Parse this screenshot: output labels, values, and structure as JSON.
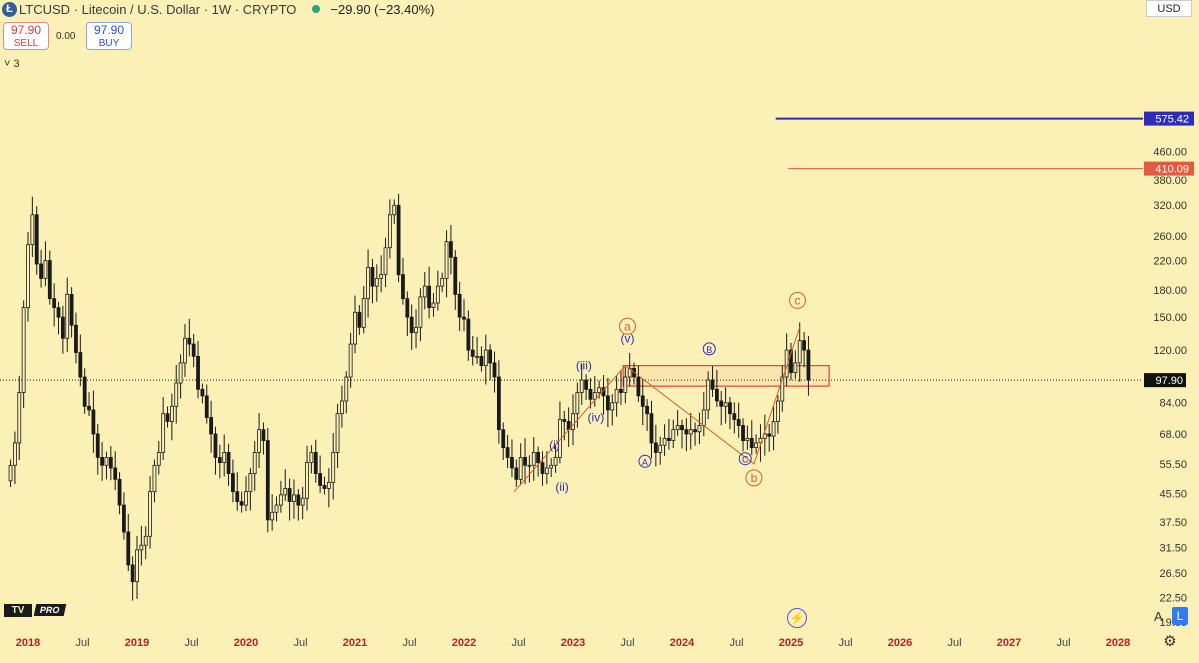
{
  "header": {
    "symbol": "LTCUSD",
    "title": "Litecoin / U.S. Dollar · 1W · CRYPTO",
    "change": "−29.90 (−23.40%)",
    "logo_glyph": "Ł",
    "logo_icon": "litecoin-icon",
    "status_color": "#2aa57a"
  },
  "trade": {
    "sell_price": "97.90",
    "sell_label": "SELL",
    "spread": "0.00",
    "buy_price": "97.90",
    "buy_label": "BUY"
  },
  "indicators": {
    "toggle_icon": "chevron-down-icon",
    "count": "3"
  },
  "currency": "USD",
  "branding": {
    "tv": "TV",
    "pro": "PRO"
  },
  "bottom_controls": {
    "auto_scale": "A",
    "log_scale": "L",
    "bolt_icon": "lightning-icon",
    "settings_icon": "gear-icon"
  },
  "chart_data": {
    "type": "candlestick",
    "symbol": "LTCUSD",
    "interval": "1W",
    "yscale": "log",
    "grid": false,
    "ylim": [
      16,
      620
    ],
    "y_ticks": [
      "460.00",
      "380.00",
      "320.00",
      "260.00",
      "220.00",
      "180.00",
      "150.00",
      "120.00",
      "84.00",
      "68.00",
      "55.50",
      "45.50",
      "37.50",
      "31.50",
      "26.50",
      "22.50",
      "19.00"
    ],
    "x_ticks": [
      {
        "label": "2018",
        "t": 2018.0,
        "bold": true
      },
      {
        "label": "Jul",
        "t": 2018.5
      },
      {
        "label": "2019",
        "t": 2019.0,
        "bold": true
      },
      {
        "label": "Jul",
        "t": 2019.5
      },
      {
        "label": "2020",
        "t": 2020.0,
        "bold": true
      },
      {
        "label": "Jul",
        "t": 2020.5
      },
      {
        "label": "2021",
        "t": 2021.0,
        "bold": true
      },
      {
        "label": "Jul",
        "t": 2021.5
      },
      {
        "label": "2022",
        "t": 2022.0,
        "bold": true
      },
      {
        "label": "Jul",
        "t": 2022.5
      },
      {
        "label": "2023",
        "t": 2023.0,
        "bold": true
      },
      {
        "label": "Jul",
        "t": 2023.5
      },
      {
        "label": "2024",
        "t": 2024.0,
        "bold": true
      },
      {
        "label": "Jul",
        "t": 2024.5
      },
      {
        "label": "2025",
        "t": 2025.0,
        "bold": true
      },
      {
        "label": "Jul",
        "t": 2025.5
      },
      {
        "label": "2026",
        "t": 2026.0,
        "bold": true
      },
      {
        "label": "Jul",
        "t": 2026.5
      },
      {
        "label": "2027",
        "t": 2027.0,
        "bold": true
      },
      {
        "label": "Jul",
        "t": 2027.5
      },
      {
        "label": "2028",
        "t": 2028.0,
        "bold": true
      }
    ],
    "candle_color": "#1a1a1a",
    "price_line": {
      "value": 97.9,
      "label": "97.90"
    },
    "hlines": [
      {
        "value": 575.42,
        "label": "575.42",
        "color": "#2d2db8",
        "from": 2024.86
      },
      {
        "value": 410.09,
        "label": "410.09",
        "color": "#e35a3f",
        "from": 2024.97
      }
    ],
    "accent_wave": "#2d2db8",
    "accent_correction": "#d2602a",
    "closes": [
      [
        2017.84,
        55
      ],
      [
        2017.88,
        64
      ],
      [
        2017.92,
        90
      ],
      [
        2017.96,
        160
      ],
      [
        2018.0,
        245
      ],
      [
        2018.04,
        300
      ],
      [
        2018.08,
        215
      ],
      [
        2018.12,
        195
      ],
      [
        2018.16,
        220
      ],
      [
        2018.2,
        170
      ],
      [
        2018.24,
        160
      ],
      [
        2018.28,
        150
      ],
      [
        2018.32,
        130
      ],
      [
        2018.36,
        175
      ],
      [
        2018.4,
        142
      ],
      [
        2018.44,
        118
      ],
      [
        2018.48,
        100
      ],
      [
        2018.52,
        82
      ],
      [
        2018.56,
        80
      ],
      [
        2018.6,
        68
      ],
      [
        2018.64,
        58
      ],
      [
        2018.68,
        55
      ],
      [
        2018.72,
        58
      ],
      [
        2018.76,
        54
      ],
      [
        2018.8,
        50
      ],
      [
        2018.84,
        42
      ],
      [
        2018.88,
        35
      ],
      [
        2018.92,
        28
      ],
      [
        2018.96,
        25
      ],
      [
        2019.0,
        31
      ],
      [
        2019.04,
        32
      ],
      [
        2019.08,
        34
      ],
      [
        2019.12,
        46
      ],
      [
        2019.16,
        55
      ],
      [
        2019.2,
        60
      ],
      [
        2019.24,
        78
      ],
      [
        2019.28,
        74
      ],
      [
        2019.32,
        82
      ],
      [
        2019.36,
        96
      ],
      [
        2019.4,
        110
      ],
      [
        2019.44,
        130
      ],
      [
        2019.48,
        125
      ],
      [
        2019.52,
        115
      ],
      [
        2019.56,
        92
      ],
      [
        2019.6,
        88
      ],
      [
        2019.64,
        76
      ],
      [
        2019.68,
        68
      ],
      [
        2019.72,
        58
      ],
      [
        2019.76,
        56
      ],
      [
        2019.8,
        60
      ],
      [
        2019.84,
        52
      ],
      [
        2019.88,
        46
      ],
      [
        2019.92,
        43
      ],
      [
        2019.96,
        42
      ],
      [
        2020.0,
        46
      ],
      [
        2020.04,
        52
      ],
      [
        2020.08,
        60
      ],
      [
        2020.12,
        70
      ],
      [
        2020.16,
        65
      ],
      [
        2020.2,
        38
      ],
      [
        2020.24,
        40
      ],
      [
        2020.28,
        42
      ],
      [
        2020.32,
        45
      ],
      [
        2020.36,
        47
      ],
      [
        2020.4,
        43
      ],
      [
        2020.44,
        45
      ],
      [
        2020.48,
        42
      ],
      [
        2020.52,
        44
      ],
      [
        2020.56,
        56
      ],
      [
        2020.6,
        60
      ],
      [
        2020.64,
        52
      ],
      [
        2020.68,
        48
      ],
      [
        2020.72,
        47
      ],
      [
        2020.76,
        49
      ],
      [
        2020.8,
        60
      ],
      [
        2020.84,
        78
      ],
      [
        2020.88,
        85
      ],
      [
        2020.92,
        100
      ],
      [
        2020.96,
        125
      ],
      [
        2021.0,
        155
      ],
      [
        2021.04,
        140
      ],
      [
        2021.08,
        170
      ],
      [
        2021.12,
        210
      ],
      [
        2021.16,
        185
      ],
      [
        2021.2,
        195
      ],
      [
        2021.24,
        200
      ],
      [
        2021.28,
        240
      ],
      [
        2021.32,
        300
      ],
      [
        2021.36,
        320
      ],
      [
        2021.4,
        200
      ],
      [
        2021.44,
        170
      ],
      [
        2021.48,
        150
      ],
      [
        2021.52,
        135
      ],
      [
        2021.56,
        140
      ],
      [
        2021.6,
        172
      ],
      [
        2021.64,
        185
      ],
      [
        2021.68,
        160
      ],
      [
        2021.72,
        165
      ],
      [
        2021.76,
        185
      ],
      [
        2021.8,
        195
      ],
      [
        2021.84,
        250
      ],
      [
        2021.88,
        225
      ],
      [
        2021.92,
        175
      ],
      [
        2021.96,
        150
      ],
      [
        2022.0,
        148
      ],
      [
        2022.04,
        120
      ],
      [
        2022.08,
        115
      ],
      [
        2022.12,
        115
      ],
      [
        2022.16,
        108
      ],
      [
        2022.2,
        120
      ],
      [
        2022.24,
        110
      ],
      [
        2022.28,
        100
      ],
      [
        2022.32,
        70
      ],
      [
        2022.36,
        62
      ],
      [
        2022.4,
        58
      ],
      [
        2022.44,
        54
      ],
      [
        2022.48,
        50
      ],
      [
        2022.52,
        58
      ],
      [
        2022.56,
        55
      ],
      [
        2022.6,
        55
      ],
      [
        2022.64,
        60
      ],
      [
        2022.68,
        56
      ],
      [
        2022.72,
        52
      ],
      [
        2022.76,
        54
      ],
      [
        2022.8,
        55
      ],
      [
        2022.84,
        58
      ],
      [
        2022.88,
        75
      ],
      [
        2022.92,
        74
      ],
      [
        2022.96,
        70
      ],
      [
        2023.0,
        78
      ],
      [
        2023.04,
        90
      ],
      [
        2023.08,
        98
      ],
      [
        2023.12,
        92
      ],
      [
        2023.16,
        86
      ],
      [
        2023.2,
        90
      ],
      [
        2023.24,
        93
      ],
      [
        2023.28,
        88
      ],
      [
        2023.32,
        80
      ],
      [
        2023.36,
        84
      ],
      [
        2023.4,
        92
      ],
      [
        2023.44,
        90
      ],
      [
        2023.48,
        100
      ],
      [
        2023.52,
        106
      ],
      [
        2023.56,
        100
      ],
      [
        2023.6,
        88
      ],
      [
        2023.64,
        82
      ],
      [
        2023.68,
        78
      ],
      [
        2023.72,
        64
      ],
      [
        2023.76,
        60
      ],
      [
        2023.8,
        63
      ],
      [
        2023.84,
        66
      ],
      [
        2023.88,
        65
      ],
      [
        2023.92,
        70
      ],
      [
        2023.96,
        72
      ],
      [
        2024.0,
        70
      ],
      [
        2024.04,
        68
      ],
      [
        2024.08,
        70
      ],
      [
        2024.12,
        69
      ],
      [
        2024.16,
        72
      ],
      [
        2024.2,
        80
      ],
      [
        2024.24,
        98
      ],
      [
        2024.28,
        92
      ],
      [
        2024.32,
        85
      ],
      [
        2024.36,
        82
      ],
      [
        2024.4,
        84
      ],
      [
        2024.44,
        78
      ],
      [
        2024.48,
        75
      ],
      [
        2024.52,
        72
      ],
      [
        2024.56,
        65
      ],
      [
        2024.6,
        66
      ],
      [
        2024.64,
        62
      ],
      [
        2024.68,
        64
      ],
      [
        2024.72,
        66
      ],
      [
        2024.76,
        68
      ],
      [
        2024.8,
        67
      ],
      [
        2024.84,
        74
      ],
      [
        2024.88,
        85
      ],
      [
        2024.92,
        100
      ],
      [
        2024.96,
        120
      ],
      [
        2025.0,
        103
      ],
      [
        2025.04,
        110
      ],
      [
        2025.08,
        128
      ],
      [
        2025.12,
        120
      ],
      [
        2025.16,
        97.9
      ]
    ],
    "annotations": [
      {
        "label": "(i)",
        "t": 2022.83,
        "price": 63,
        "color": "#2d2db8",
        "style": "plain"
      },
      {
        "label": "(ii)",
        "t": 2022.9,
        "price": 47.5,
        "color": "#2d2db8",
        "style": "plain"
      },
      {
        "label": "(iii)",
        "t": 2023.1,
        "price": 108,
        "color": "#2d2db8",
        "style": "plain"
      },
      {
        "label": "(iv)",
        "t": 2023.21,
        "price": 76,
        "color": "#2d2db8",
        "style": "plain"
      },
      {
        "label": "(v)",
        "t": 2023.5,
        "price": 130,
        "color": "#2d2db8",
        "style": "plain"
      },
      {
        "label": "a",
        "t": 2023.5,
        "price": 141,
        "color": "#d2602a",
        "style": "circle"
      },
      {
        "label": "A",
        "t": 2023.66,
        "price": 56.5,
        "color": "#2d2db8",
        "style": "circle"
      },
      {
        "label": "B",
        "t": 2024.25,
        "price": 121,
        "color": "#2d2db8",
        "style": "circle"
      },
      {
        "label": "C",
        "t": 2024.58,
        "price": 57.5,
        "color": "#2d2db8",
        "style": "circle"
      },
      {
        "label": "b",
        "t": 2024.66,
        "price": 50.5,
        "color": "#d2602a",
        "style": "circle"
      },
      {
        "label": "c",
        "t": 2025.06,
        "price": 168,
        "color": "#d2602a",
        "style": "circle"
      }
    ],
    "zone": {
      "t1": 2023.46,
      "t2": 2025.35,
      "p_top": 108,
      "p_bottom": 94,
      "color": "#d9463c"
    },
    "wave_lines": [
      {
        "color": "#d2602a",
        "points": [
          [
            2022.46,
            46
          ],
          [
            2023.48,
            108
          ],
          [
            2024.66,
            55.5
          ],
          [
            2025.08,
            140
          ]
        ]
      }
    ]
  }
}
